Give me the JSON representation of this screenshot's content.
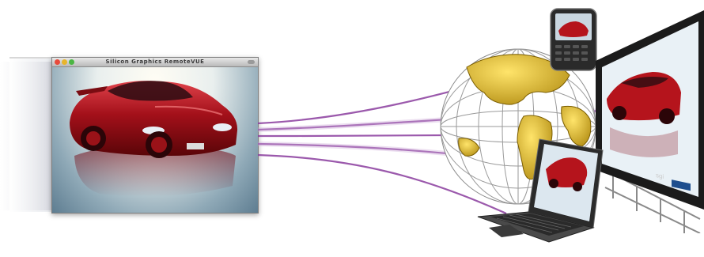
{
  "window": {
    "title": "Silicon Graphics RemoteVUE",
    "buttons": [
      "close",
      "minimize",
      "zoom"
    ]
  },
  "devices": {
    "phone_screen": "car-rendering",
    "laptop_screen": "car-rendering",
    "display_wall_screen": "car-rendering",
    "display_wall_badge": "sgi"
  },
  "colors": {
    "stream_lines": "#8a3d9e",
    "globe_land": "#e2b71c",
    "car_body": "#b5141c",
    "window_background": "#7d98a8"
  },
  "icons": [
    "globe-icon",
    "smartphone-icon",
    "laptop-icon",
    "display-wall-icon",
    "car-image"
  ]
}
